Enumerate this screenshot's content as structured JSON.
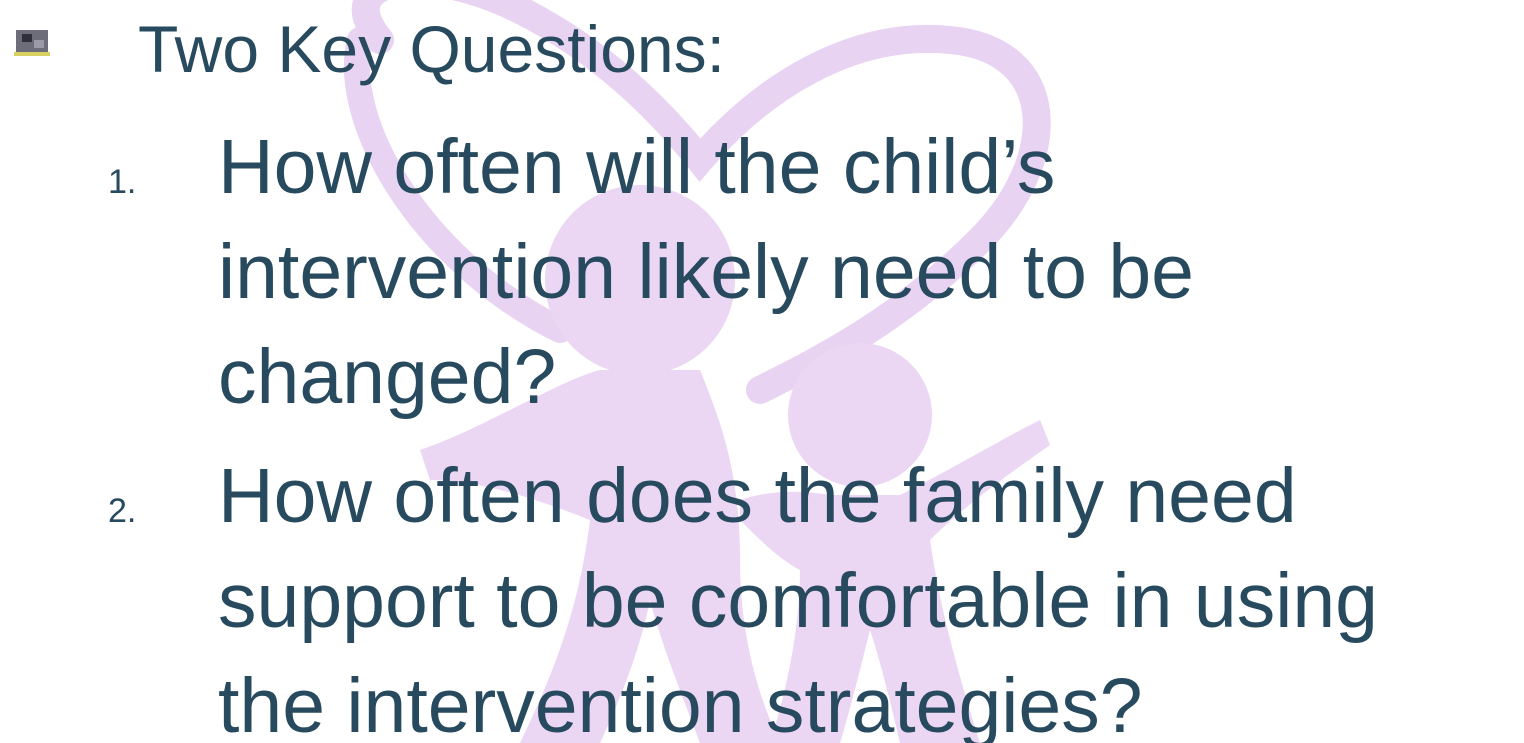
{
  "slide": {
    "title": "Two Key Questions:",
    "items": [
      {
        "number": "1.",
        "lines": [
          "How often will the child’s",
          "intervention likely need to be",
          "changed?"
        ]
      },
      {
        "number": "2.",
        "lines": [
          "How often does the family need",
          "support to be comfortable in using",
          "the intervention strategies?"
        ]
      }
    ]
  }
}
